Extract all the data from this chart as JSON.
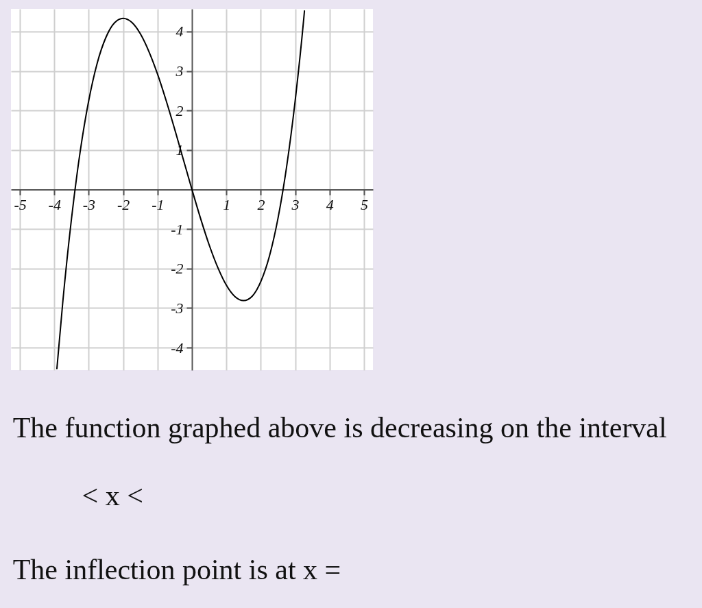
{
  "chart_data": {
    "type": "line",
    "x": [
      -3.925,
      -3.75,
      -3.5,
      -3.25,
      -3.0,
      -2.75,
      -2.5,
      -2.25,
      -2.0,
      -1.75,
      -1.5,
      -1.25,
      -1.0,
      -0.75,
      -0.5,
      -0.25,
      0,
      0.25,
      0.5,
      0.75,
      1.0,
      1.25,
      1.5,
      1.75,
      2.0,
      2.25,
      2.5,
      2.75,
      3.0,
      3.25,
      3.27
    ],
    "series": [
      {
        "color": "#000000",
        "values": [
          -4.53,
          -2.81,
          -0.73,
          0.95,
          2.25,
          3.21,
          3.85,
          4.22,
          4.33,
          4.23,
          3.94,
          3.49,
          2.92,
          2.25,
          1.52,
          0.76,
          0,
          -0.73,
          -1.4,
          -1.97,
          -2.42,
          -2.71,
          -2.81,
          -2.7,
          -2.33,
          -1.69,
          -0.73,
          0.57,
          2.25,
          4.33,
          4.52
        ]
      }
    ],
    "xlim": [
      -5.26,
      5.26
    ],
    "ylim": [
      -4.57,
      4.57
    ],
    "xticks": [
      -5,
      -4,
      -3,
      -2,
      -1,
      1,
      2,
      3,
      4,
      5
    ],
    "yticks": [
      -4,
      -3,
      -2,
      -1,
      1,
      2,
      3,
      4
    ],
    "grid": true,
    "annotations": [
      "The function graphed above is decreasing on the interval",
      "< x <",
      "The inflection point is at x ="
    ]
  }
}
